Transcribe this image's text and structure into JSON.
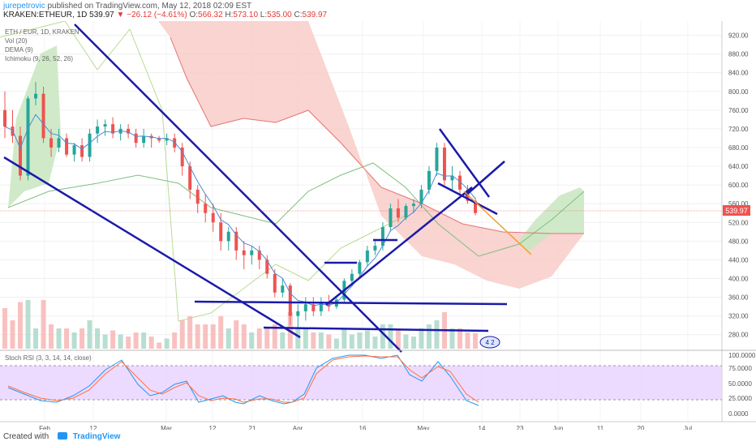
{
  "header": {
    "user": "jurepetrovic",
    "published": "published on TradingView.com, May 12, 2018 02:09 EST",
    "symbol": "KRAKEN:ETHEUR, 1D",
    "last": "539.97",
    "change": "▼ −26.12 (−4.61%)",
    "o_label": "O:",
    "o_value": "566.32",
    "h_label": "H:",
    "h_value": "573.10",
    "l_label": "L:",
    "l_value": "535.00",
    "c_label": "C:",
    "c_value": "539.97"
  },
  "legend": {
    "title": "ETH / EUR, 1D, KRAKEN",
    "vol": "Vol (20)",
    "dema": "DEMA (9)",
    "ichimoku": "Ichimoku (9, 26, 52, 26)",
    "stoch": "Stoch RSI (3, 3, 14, 14, close)"
  },
  "footer": {
    "created_with": "Created with",
    "brand": "TradingView"
  },
  "badge": "4 2",
  "colors": {
    "up": "#26a69a",
    "down": "#ef5350",
    "trendline": "#1a1aaa",
    "cloud_bear": "#f8c9c4",
    "cloud_bull": "#c8e6c0",
    "stoch_bg": "#e6ccff",
    "stoch_k": "#2196f3",
    "stoch_d": "#ff7043",
    "orange_line": "#f0a030",
    "price_tag": "#ef5350"
  },
  "chart_data": {
    "type": "candlestick",
    "symbol": "ETH / EUR",
    "timeframe": "1D",
    "exchange": "KRAKEN",
    "ylim": [
      250,
      940
    ],
    "yticks": [
      "920.00",
      "880.00",
      "840.00",
      "800.00",
      "760.00",
      "720.00",
      "680.00",
      "640.00",
      "600.00",
      "560.00",
      "520.00",
      "480.00",
      "440.00",
      "400.00",
      "360.00",
      "320.00",
      "280.00"
    ],
    "price_tag": "539.97",
    "xlabels": [
      "Feb",
      "12",
      "Mar",
      "12",
      "21",
      "Apr",
      "16",
      "May",
      "14",
      "23",
      "Jun",
      "11",
      "20",
      "Jul"
    ],
    "candles_approx": [
      [
        760,
        800,
        700,
        725
      ],
      [
        725,
        760,
        690,
        705
      ],
      [
        705,
        725,
        610,
        620
      ],
      [
        620,
        790,
        610,
        785
      ],
      [
        785,
        820,
        770,
        795
      ],
      [
        795,
        810,
        690,
        700
      ],
      [
        700,
        720,
        660,
        680
      ],
      [
        680,
        720,
        670,
        700
      ],
      [
        700,
        710,
        660,
        665
      ],
      [
        665,
        690,
        650,
        685
      ],
      [
        685,
        700,
        650,
        660
      ],
      [
        660,
        720,
        650,
        710
      ],
      [
        710,
        740,
        690,
        725
      ],
      [
        725,
        740,
        705,
        730
      ],
      [
        730,
        745,
        700,
        710
      ],
      [
        710,
        730,
        695,
        720
      ],
      [
        720,
        730,
        700,
        710
      ],
      [
        710,
        720,
        680,
        690
      ],
      [
        690,
        720,
        680,
        705
      ],
      [
        705,
        710,
        680,
        700
      ],
      [
        700,
        705,
        690,
        695
      ],
      [
        695,
        710,
        685,
        700
      ],
      [
        700,
        710,
        670,
        680
      ],
      [
        680,
        690,
        620,
        640
      ],
      [
        640,
        650,
        570,
        590
      ],
      [
        590,
        600,
        540,
        560
      ],
      [
        560,
        580,
        520,
        540
      ],
      [
        540,
        560,
        500,
        520
      ],
      [
        520,
        540,
        460,
        480
      ],
      [
        480,
        510,
        460,
        500
      ],
      [
        500,
        510,
        440,
        460
      ],
      [
        460,
        480,
        420,
        450
      ],
      [
        450,
        470,
        430,
        460
      ],
      [
        460,
        470,
        420,
        440
      ],
      [
        440,
        450,
        400,
        410
      ],
      [
        410,
        420,
        360,
        370
      ],
      [
        370,
        400,
        360,
        385
      ],
      [
        385,
        390,
        300,
        320
      ],
      [
        320,
        345,
        295,
        330
      ],
      [
        330,
        360,
        310,
        345
      ],
      [
        345,
        360,
        320,
        330
      ],
      [
        330,
        360,
        320,
        350
      ],
      [
        350,
        365,
        330,
        340
      ],
      [
        340,
        360,
        335,
        355
      ],
      [
        355,
        400,
        350,
        395
      ],
      [
        395,
        420,
        385,
        410
      ],
      [
        410,
        440,
        400,
        435
      ],
      [
        435,
        470,
        425,
        460
      ],
      [
        460,
        480,
        450,
        470
      ],
      [
        470,
        520,
        460,
        510
      ],
      [
        510,
        560,
        500,
        550
      ],
      [
        550,
        570,
        520,
        530
      ],
      [
        530,
        560,
        525,
        555
      ],
      [
        555,
        570,
        540,
        560
      ],
      [
        560,
        600,
        550,
        590
      ],
      [
        590,
        640,
        580,
        630
      ],
      [
        630,
        690,
        620,
        680
      ],
      [
        680,
        690,
        600,
        610
      ],
      [
        610,
        640,
        590,
        620
      ],
      [
        620,
        630,
        580,
        590
      ],
      [
        590,
        600,
        560,
        566
      ],
      [
        566,
        573,
        535,
        540
      ]
    ]
  }
}
